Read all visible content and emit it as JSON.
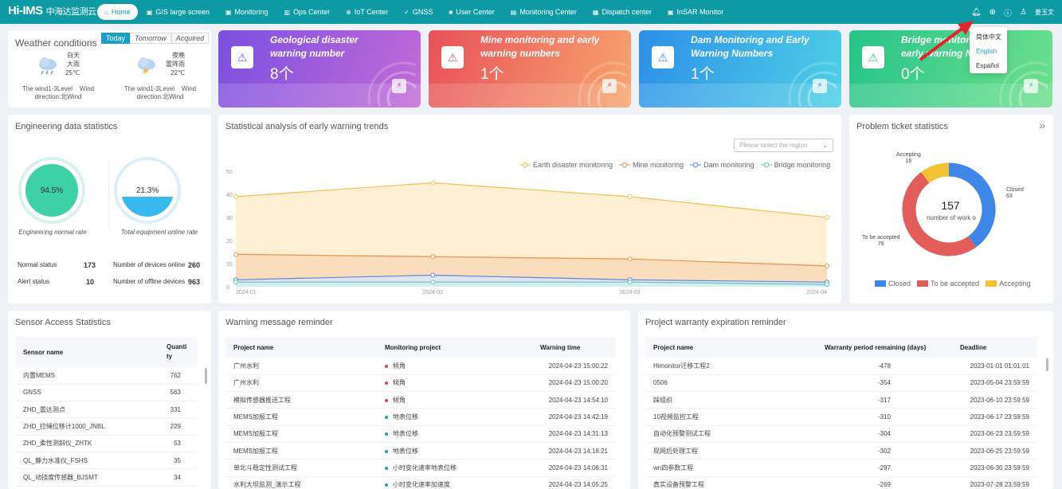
{
  "nav": {
    "logo": "Hi-IMS",
    "logo_cn": "中海达监测云",
    "items": [
      {
        "label": "Home",
        "icon": "⌂"
      },
      {
        "label": "GIS large screen",
        "icon": "▣"
      },
      {
        "label": "Monitoring",
        "icon": "▣"
      },
      {
        "label": "Ops Center",
        "icon": "▥"
      },
      {
        "label": "IoT Center",
        "icon": "⊕"
      },
      {
        "label": "GNSS",
        "icon": "✓"
      },
      {
        "label": "User Center",
        "icon": "■"
      },
      {
        "label": "Monitoring Center",
        "icon": "▤"
      },
      {
        "label": "Dispatch center",
        "icon": "▦"
      },
      {
        "label": "InSAR Monitor",
        "icon": "▣"
      }
    ],
    "user": "姜玉文"
  },
  "lang_menu": [
    "简体中文",
    "English",
    "Español"
  ],
  "weather": {
    "title": "Weather conditions",
    "tabs": [
      "Today",
      "Tomorrow",
      "Acquired"
    ],
    "day": {
      "l1": "白天",
      "l2": "大雨",
      "temp": "25℃",
      "wind": "The wind1-3Level",
      "wind2": "Wind",
      "dir": "direction:北Wind"
    },
    "night": {
      "l1": "夜晚",
      "l2": "雷阵雨",
      "temp": "22℃",
      "wind": "The wind1-3Level",
      "wind2": "Wind",
      "dir": "direction:北Wind"
    }
  },
  "cards": [
    {
      "title": "Geological disaster warning number",
      "value": "8个",
      "color1": "#7b4fe0",
      "color2": "#c36bd6"
    },
    {
      "title": "Mine monitoring and early warning numbers",
      "value": "1个",
      "color1": "#e8515a",
      "color2": "#f7a56e"
    },
    {
      "title": "Dam Monitoring and Early Warning Numbers",
      "value": "1个",
      "color1": "#2c8fe8",
      "color2": "#4fd0e6"
    },
    {
      "title": "Bridge monitoring and early warning Numbers",
      "value": "0个",
      "color1": "#26c38a",
      "color2": "#6fe08c"
    }
  ],
  "engineering": {
    "title": "Engineering data statistics",
    "normal_rate": "94.5%",
    "normal_label": "Engineering normal rate",
    "online_rate": "21.3%",
    "online_label": "Total equipment online rate",
    "normal_status_label": "Normal status",
    "normal_status": "173",
    "alert_status_label": "Alert status",
    "alert_status": "10",
    "online_label2": "Number of devices online",
    "online": "260",
    "offline_label": "Number of offline devices",
    "offline": "963"
  },
  "trend": {
    "title": "Statistical analysis of early warning trends",
    "select_placeholder": "Please select the region"
  },
  "chart_data": {
    "type": "line",
    "x": [
      "2024-01",
      "2024-02",
      "2024-03",
      "2024-04"
    ],
    "ylim": [
      0,
      50
    ],
    "yticks": [
      0,
      10,
      20,
      30,
      40,
      50
    ],
    "series": [
      {
        "name": "Earth disaster monitoring",
        "values": [
          39,
          45,
          39,
          30
        ],
        "color": "#f2c04d",
        "fill": "#fbeccb"
      },
      {
        "name": "Mine monitoring",
        "values": [
          14,
          13,
          12,
          9
        ],
        "color": "#e8914a",
        "fill": "#f8d9b8"
      },
      {
        "name": "Dam monitoring",
        "values": [
          3,
          5,
          3,
          2
        ],
        "color": "#5b86d9",
        "fill": "#dde6f7"
      },
      {
        "name": "Bridge monitoring",
        "values": [
          2,
          2,
          2,
          1
        ],
        "color": "#5ec7c0",
        "fill": "#d5f0ee"
      }
    ]
  },
  "tickets": {
    "title": "Problem ticket statistics",
    "total": "157",
    "total_label": "number of work o",
    "slices": [
      {
        "name": "Closed",
        "value": 63,
        "color": "#3e86e8"
      },
      {
        "name": "To be accepted",
        "value": 78,
        "color": "#e35c5a"
      },
      {
        "name": "Accepting",
        "value": 16,
        "color": "#f2c232"
      }
    ],
    "lbl_accepting": "Accepting",
    "lbl_accepting_v": "16",
    "lbl_closed": "Closed",
    "lbl_closed_v": "63",
    "lbl_tba": "To be accepted",
    "lbl_tba_v": "78",
    "expand": "»"
  },
  "sensor": {
    "title": "Sensor Access Statistics",
    "headers": [
      "Sensor name",
      "Quanti ty"
    ],
    "rows": [
      [
        "内置MEMS",
        "762"
      ],
      [
        "GNSS",
        "563"
      ],
      [
        "ZHD_雷达测点",
        "331"
      ],
      [
        "ZHD_拉绳位移计1000_JNBL",
        "229"
      ],
      [
        "ZHD_柔性测斜仪_ZHTK",
        "53"
      ],
      [
        "QL_静力水准仪_FSHS",
        "35"
      ],
      [
        "QL_动挠度传感器_BJSMT",
        "34"
      ]
    ]
  },
  "warning": {
    "title": "Warning message reminder",
    "headers": [
      "Project name",
      "Monitoring project",
      "Warning time"
    ],
    "rows": [
      [
        "广州水利",
        "倾角",
        "2024-04-23 15:00:22",
        "#e0434b"
      ],
      [
        "广州水利",
        "倾角",
        "2024-04-23 15:00:20",
        "#e0434b"
      ],
      [
        "模拟传感器推送工程",
        "倾角",
        "2024-04-23 14:54:10",
        "#e0434b"
      ],
      [
        "MEMS加报工程",
        "地表位移",
        "2024-04-23 14:42:19",
        "#1aa0c8"
      ],
      [
        "MEMS加报工程",
        "地表位移",
        "2024-04-23 14:31:13",
        "#1aa0c8"
      ],
      [
        "MEMS加报工程",
        "地表位移",
        "2024-04-23 14:16:21",
        "#1aa0c8"
      ],
      [
        "单北斗稳定性测试工程",
        "小时变化速率地表位移",
        "2024-04-23 14:06:31",
        "#1aa0c8"
      ],
      [
        "水利大坝监测_演示工程",
        "小时变化速率加速度",
        "2024-04-23 14:05:25",
        "#1aa0c8"
      ]
    ]
  },
  "warranty": {
    "title": "Project warranty expiration reminder",
    "headers": [
      "Project name",
      "Warranty period remaining (days)",
      "Deadline"
    ],
    "rows": [
      [
        "Himonitor迁移工程2",
        "-478",
        "2023-01-01 01:01:01"
      ],
      [
        "0506",
        "-354",
        "2023-05-04 23:59:59"
      ],
      [
        "踩组织",
        "-317",
        "2023-06-10 23:59:59"
      ],
      [
        "10视频监控工程",
        "-310",
        "2023-06-17 23:59:59"
      ],
      [
        "自动化预警测试工程",
        "-304",
        "2023-06-23 23:59:59"
      ],
      [
        "现网后处理工程",
        "-302",
        "2023-06-25 23:59:59"
      ],
      [
        "wn四参数工程",
        "-297",
        "2023-06-30 23:59:59"
      ],
      [
        "真实设备预警工程",
        "-269",
        "2023-07-28 23:59:59"
      ]
    ]
  }
}
